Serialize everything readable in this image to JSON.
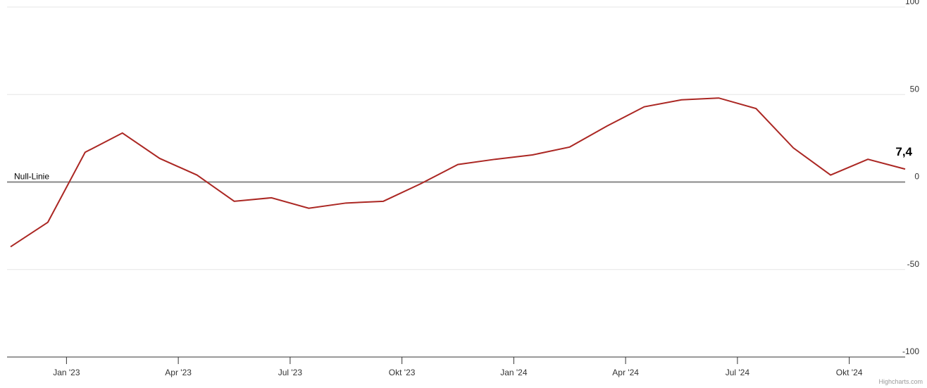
{
  "chart_data": {
    "type": "line",
    "x": [
      "2022-11",
      "2022-12",
      "2023-01",
      "2023-02",
      "2023-03",
      "2023-04",
      "2023-05",
      "2023-06",
      "2023-07",
      "2023-08",
      "2023-09",
      "2023-10",
      "2023-11",
      "2023-12",
      "2024-01",
      "2024-02",
      "2024-03",
      "2024-04",
      "2024-05",
      "2024-06",
      "2024-07",
      "2024-08",
      "2024-09",
      "2024-10",
      "2024-11"
    ],
    "series": [
      {
        "color": "#ab2723",
        "values": [
          -37,
          -23,
          17,
          28,
          13.5,
          4,
          -11,
          -9,
          -15,
          -12,
          -11,
          -1,
          10,
          13,
          15.5,
          20,
          32,
          43,
          47,
          48,
          42,
          19.5,
          4,
          13,
          7.4
        ],
        "value_labels": [
          null,
          null,
          null,
          null,
          null,
          null,
          null,
          null,
          null,
          null,
          null,
          null,
          null,
          null,
          null,
          null,
          null,
          null,
          null,
          null,
          null,
          null,
          null,
          null,
          "7,4"
        ]
      }
    ],
    "xlim": [
      "2022-11",
      "2024-11"
    ],
    "xticks": [
      {
        "value": "2023-01",
        "label": "Jan '23"
      },
      {
        "value": "2023-04",
        "label": "Apr '23"
      },
      {
        "value": "2023-07",
        "label": "Jul '23"
      },
      {
        "value": "2023-10",
        "label": "Okt '23"
      },
      {
        "value": "2024-01",
        "label": "Jan '24"
      },
      {
        "value": "2024-04",
        "label": "Apr '24"
      },
      {
        "value": "2024-07",
        "label": "Jul '24"
      },
      {
        "value": "2024-10",
        "label": "Okt '24"
      }
    ],
    "ylim": [
      -100,
      100
    ],
    "yticks": [
      100,
      50,
      0,
      -50,
      -100
    ],
    "grid": true,
    "plot_lines": [
      {
        "value": 0,
        "label": "Null-Linie"
      }
    ],
    "credits": "Highcharts.com"
  }
}
